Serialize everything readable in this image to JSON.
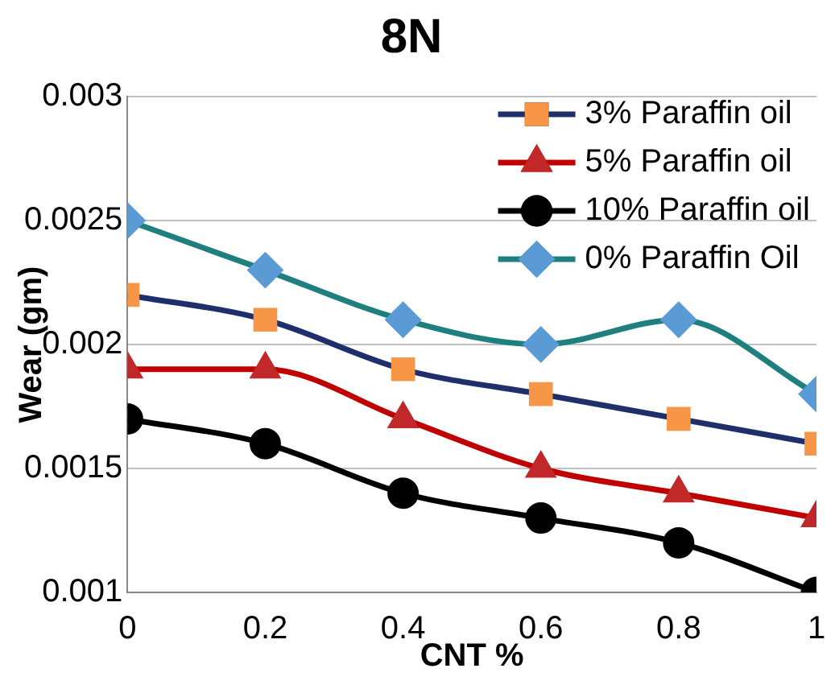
{
  "chart_data": {
    "type": "line",
    "title": "8N",
    "xlabel": "CNT %",
    "ylabel": "Wear (gm)",
    "x": [
      0,
      0.2,
      0.4,
      0.6,
      0.8,
      1
    ],
    "xlim": [
      0,
      1
    ],
    "xticks": [
      0,
      0.2,
      0.4,
      0.6,
      0.8,
      1
    ],
    "ylim": [
      0.001,
      0.003
    ],
    "yticks": [
      0.001,
      0.0015,
      0.002,
      0.0025,
      0.003
    ],
    "grid": "y",
    "legend": "top right",
    "line_style": "solid",
    "series": [
      {
        "name": "3% Paraffin oil",
        "color": "#1f2f6b",
        "marker": "square",
        "colors": [
          "#f79646",
          "#f79646",
          "#f79646",
          "#f79646",
          "#f79646",
          "#f79646"
        ],
        "values": [
          0.0022,
          0.0021,
          0.0019,
          0.0018,
          0.0017,
          0.0016
        ]
      },
      {
        "name": "5% Paraffin oil",
        "color": "#c00000",
        "marker": "triangle",
        "colors": [
          "#c0282a",
          "#c0282a",
          "#c0282a",
          "#c0282a",
          "#c0282a",
          "#c0282a"
        ],
        "values": [
          0.0019,
          0.0019,
          0.0017,
          0.0015,
          0.0014,
          0.0013
        ]
      },
      {
        "name": "10% Paraffin oil",
        "color": "#000000",
        "marker": "circle",
        "colors": [
          "#000000",
          "#000000",
          "#000000",
          "#000000",
          "#000000",
          "#000000"
        ],
        "values": [
          0.0017,
          0.0016,
          0.0014,
          0.0013,
          0.0012,
          0.001
        ]
      },
      {
        "name": "0% Paraffin Oil",
        "color": "#1f7f7f",
        "marker": "diamond",
        "colors": [
          "#5b9bd5",
          "#5b9bd5",
          "#5b9bd5",
          "#5b9bd5",
          "#5b9bd5",
          "#5b9bd5"
        ],
        "values": [
          0.0025,
          0.0023,
          0.0021,
          0.002,
          0.0021,
          0.0018
        ]
      }
    ]
  }
}
